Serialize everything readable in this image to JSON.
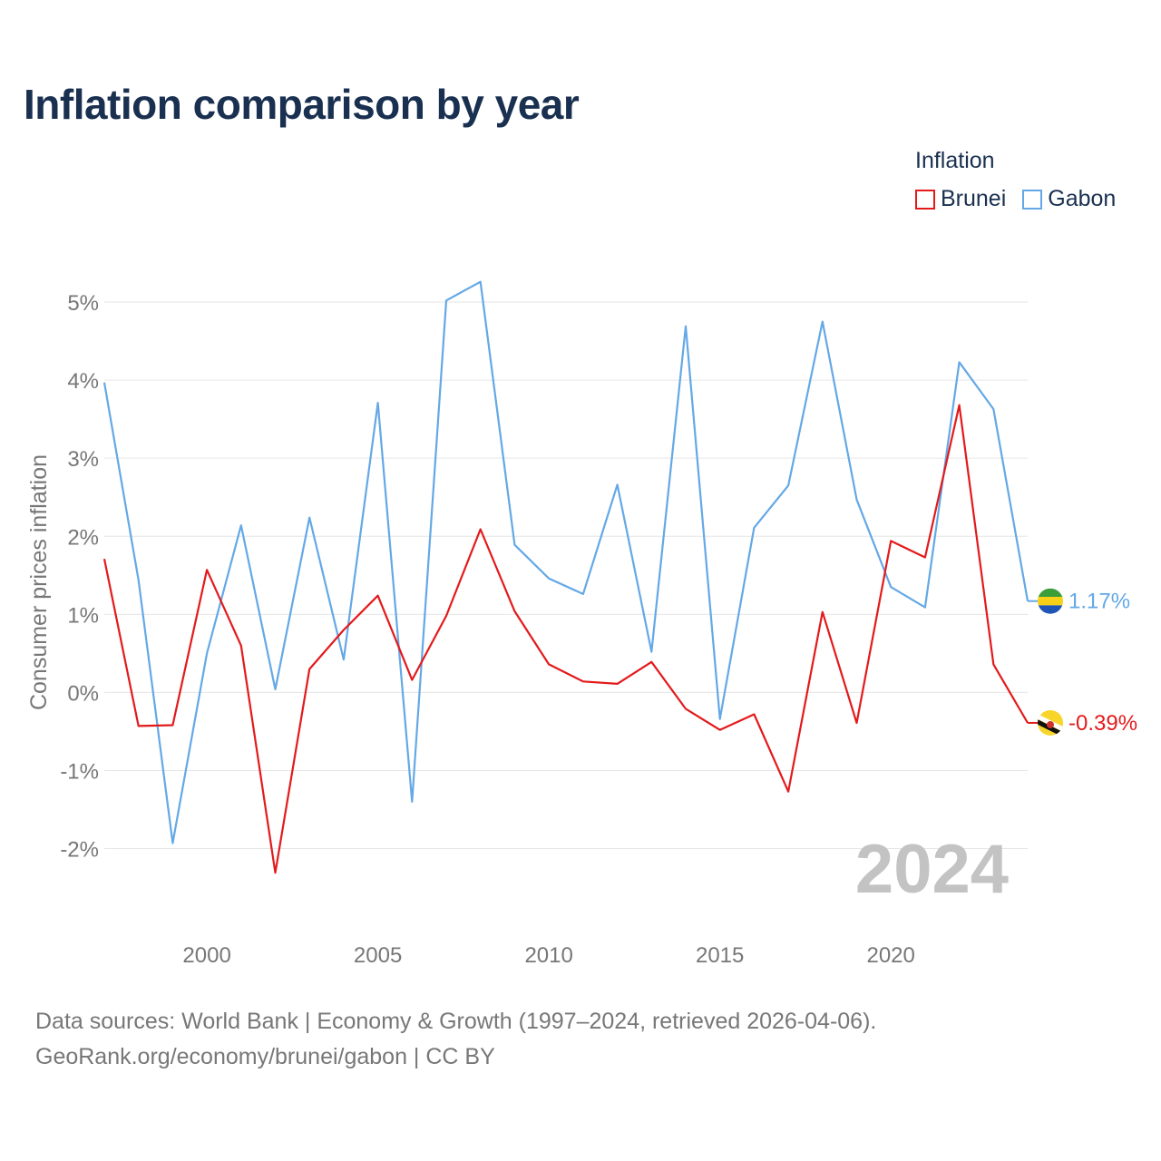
{
  "title": "Inflation comparison by year",
  "legend": {
    "title": "Inflation",
    "items": [
      {
        "label": "Brunei",
        "color": "#e31a1c"
      },
      {
        "label": "Gabon",
        "color": "#64a8e6"
      }
    ]
  },
  "watermark_year": "2024",
  "source": {
    "line1": "Data sources: World Bank | Economy & Growth (1997–2024, retrieved 2026-04-06).",
    "line2": "GeoRank.org/economy/brunei/gabon | CC BY"
  },
  "chart_data": {
    "type": "line",
    "title": "Inflation comparison by year",
    "xlabel": "",
    "ylabel": "Consumer prices inflation",
    "x": [
      1997,
      1998,
      1999,
      2000,
      2001,
      2002,
      2003,
      2004,
      2005,
      2006,
      2007,
      2008,
      2009,
      2010,
      2011,
      2012,
      2013,
      2014,
      2015,
      2016,
      2017,
      2018,
      2019,
      2020,
      2021,
      2022,
      2023,
      2024
    ],
    "xlim": [
      1997,
      2024
    ],
    "ylim": [
      -2.9,
      5.5
    ],
    "x_ticks": [
      2000,
      2005,
      2010,
      2015,
      2020
    ],
    "x_tick_labels": [
      "2000",
      "2005",
      "2010",
      "2015",
      "2020"
    ],
    "y_ticks": [
      -2,
      -1,
      0,
      1,
      2,
      3,
      4,
      5
    ],
    "y_tick_labels": [
      "-2%",
      "-1%",
      "0%",
      "1%",
      "2%",
      "3%",
      "4%",
      "5%"
    ],
    "grid": true,
    "legend_position": "top-right",
    "series": [
      {
        "name": "Brunei",
        "color": "#e31a1c",
        "end_label": "-0.39%",
        "values": [
          1.71,
          -0.43,
          -0.42,
          1.57,
          0.6,
          -2.31,
          0.3,
          0.8,
          1.24,
          0.16,
          0.98,
          2.09,
          1.04,
          0.36,
          0.14,
          0.11,
          0.39,
          -0.21,
          -0.48,
          -0.28,
          -1.27,
          1.03,
          -0.39,
          1.94,
          1.73,
          3.68,
          0.36,
          -0.39
        ]
      },
      {
        "name": "Gabon",
        "color": "#64a8e6",
        "end_label": "1.17%",
        "values": [
          3.97,
          1.44,
          -1.93,
          0.5,
          2.14,
          0.04,
          2.24,
          0.42,
          3.71,
          -1.4,
          5.02,
          5.26,
          1.89,
          1.46,
          1.26,
          2.66,
          0.52,
          4.69,
          -0.34,
          2.11,
          2.65,
          4.75,
          2.47,
          1.35,
          1.09,
          4.23,
          3.63,
          1.17
        ]
      }
    ]
  }
}
